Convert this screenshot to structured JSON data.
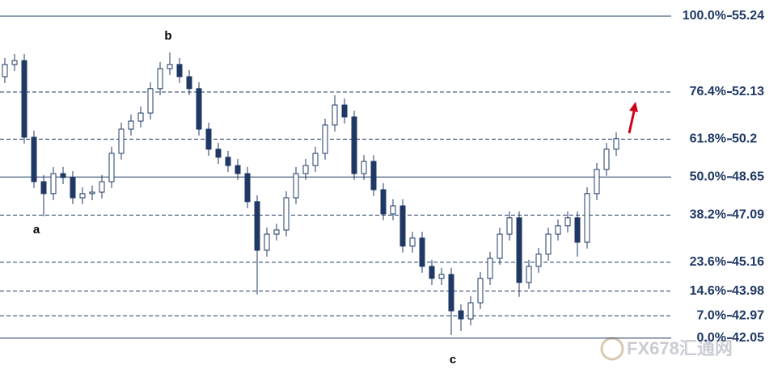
{
  "chart_data": {
    "type": "candlestick",
    "ylim": [
      40.46,
      55.9
    ],
    "open": [
      52.76,
      53.26,
      53.42,
      50.28,
      48.46,
      47.97,
      48.79,
      48.63,
      47.8,
      47.97,
      48.03,
      48.46,
      49.62,
      50.61,
      50.94,
      51.27,
      52.27,
      53.09,
      53.26,
      52.76,
      52.27,
      50.61,
      49.79,
      49.46,
      49.12,
      48.79,
      47.64,
      45.65,
      46.31,
      46.48,
      47.8,
      48.79,
      49.12,
      49.62,
      50.78,
      51.6,
      51.11,
      48.79,
      49.29,
      48.13,
      47.14,
      47.47,
      45.82,
      46.15,
      44.99,
      44.5,
      44.66,
      43.17,
      42.84,
      43.5,
      44.5,
      45.32,
      46.31,
      46.98,
      44.33,
      44.99,
      45.49,
      46.31,
      46.65,
      46.98,
      45.98,
      47.97,
      48.96,
      49.79
    ],
    "high": [
      53.52,
      53.69,
      53.69,
      50.55,
      48.73,
      49.06,
      49.06,
      48.89,
      48.23,
      48.3,
      48.73,
      49.89,
      50.88,
      51.21,
      51.54,
      52.53,
      53.36,
      53.75,
      53.52,
      53.03,
      52.53,
      50.88,
      50.05,
      49.72,
      49.39,
      49.06,
      47.9,
      46.58,
      46.74,
      48.07,
      49.06,
      49.39,
      49.89,
      51.04,
      52.0,
      51.87,
      51.37,
      49.55,
      49.55,
      48.4,
      47.74,
      47.74,
      46.41,
      46.41,
      45.26,
      44.93,
      44.93,
      43.44,
      43.77,
      44.76,
      45.59,
      46.58,
      47.24,
      47.24,
      45.26,
      45.75,
      46.58,
      46.91,
      47.24,
      47.24,
      48.23,
      49.22,
      50.05,
      50.48
    ],
    "low": [
      52.5,
      52.99,
      50.02,
      48.2,
      47.04,
      47.7,
      48.36,
      47.54,
      47.54,
      47.7,
      47.77,
      48.2,
      49.36,
      50.35,
      50.68,
      51.01,
      52.0,
      52.83,
      52.5,
      52.0,
      50.35,
      49.52,
      49.19,
      48.86,
      48.53,
      47.37,
      43.84,
      45.39,
      46.05,
      46.22,
      47.54,
      48.53,
      48.86,
      49.36,
      50.51,
      50.84,
      48.53,
      48.53,
      47.87,
      46.88,
      46.88,
      45.55,
      45.55,
      44.73,
      44.23,
      44.23,
      42.18,
      42.35,
      42.58,
      43.24,
      44.23,
      45.06,
      46.05,
      43.74,
      44.07,
      44.73,
      45.22,
      46.05,
      46.38,
      45.39,
      45.72,
      47.7,
      48.7,
      49.52
    ],
    "close": [
      53.26,
      53.42,
      50.28,
      48.46,
      47.97,
      48.79,
      48.63,
      47.8,
      47.97,
      48.03,
      48.46,
      49.62,
      50.61,
      50.94,
      51.27,
      52.27,
      53.09,
      53.26,
      52.76,
      52.27,
      50.61,
      49.79,
      49.46,
      49.12,
      48.79,
      47.64,
      45.65,
      46.31,
      46.48,
      47.8,
      48.79,
      49.12,
      49.62,
      50.78,
      51.6,
      51.11,
      48.79,
      49.29,
      48.13,
      47.14,
      47.47,
      45.82,
      46.15,
      44.99,
      44.5,
      44.66,
      43.17,
      42.84,
      43.5,
      44.5,
      45.32,
      46.31,
      46.98,
      44.33,
      44.99,
      45.49,
      46.31,
      46.65,
      46.98,
      45.98,
      47.97,
      48.96,
      49.79,
      50.22
    ],
    "up_color": "#ffffff",
    "down_color": "#1f3864",
    "edge_color": "#1f3864",
    "levels": [
      {
        "label": "100.0%",
        "value": 55.24,
        "style": "solid"
      },
      {
        "label": "76.4%",
        "value": 52.13,
        "style": "dashed"
      },
      {
        "label": "61.8%",
        "value": 50.2,
        "style": "dashed"
      },
      {
        "label": "50.0%",
        "value": 48.65,
        "style": "solid"
      },
      {
        "label": "38.2%",
        "value": 47.09,
        "style": "dashed"
      },
      {
        "label": "23.6%",
        "value": 45.16,
        "style": "dashed"
      },
      {
        "label": "14.6%",
        "value": 43.98,
        "style": "dashed"
      },
      {
        "label": "7.0%",
        "value": 42.97,
        "style": "dashed"
      },
      {
        "label": "0.0%",
        "value": 42.05,
        "style": "solid"
      }
    ],
    "level_color": "#1f3864",
    "annotations": [
      "a",
      "b",
      "c"
    ],
    "watermark": "FX678汇通网"
  }
}
